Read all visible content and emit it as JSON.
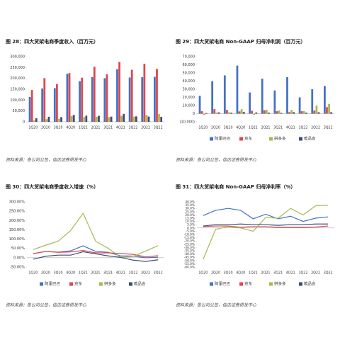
{
  "chart_data": [
    {
      "type": "bar",
      "title": "图 28：四大货架电商季度收入（百万元）",
      "categories": [
        "1Q20",
        "2Q20",
        "3Q20",
        "4Q20",
        "1Q21",
        "2Q21",
        "3Q21",
        "4Q21",
        "1Q22",
        "2Q22",
        "3Q22"
      ],
      "series": [
        {
          "color": "#4472c4",
          "values": [
            114314,
            153751,
            155059,
            221084,
            187395,
            205740,
            200690,
            242580,
            204052,
            205555,
            207176
          ]
        },
        {
          "color": "#e0474c",
          "values": [
            146205,
            201054,
            174176,
            224329,
            203198,
            253798,
            218704,
            275912,
            239666,
            267602,
            243535
          ]
        },
        {
          "color": "#a9b84f",
          "values": [
            6541,
            12193,
            14210,
            26548,
            22167,
            23044,
            21506,
            27231,
            23794,
            31440,
            35504
          ]
        },
        {
          "color": "#3f4a7d",
          "values": [
            16900,
            23300,
            21800,
            31700,
            28400,
            28000,
            24000,
            36600,
            25000,
            24200,
            23000
          ]
        }
      ],
      "ylim": [
        0,
        300000
      ],
      "yticks": [
        0,
        {
          "value": 50000,
          "label": "50,000"
        },
        {
          "value": 100000,
          "label": "100,000"
        },
        {
          "value": 150000,
          "label": "150,000"
        },
        {
          "value": 200000,
          "label": "200,000"
        },
        {
          "value": 250000,
          "label": "250,000"
        },
        {
          "value": 300000,
          "label": "300,000"
        }
      ],
      "source": "资料来源：各公司公告，信达证券研发中心"
    },
    {
      "type": "bar",
      "title": "图 29：四大货架电商 Non-GAAP 归母净利润（百万元）",
      "categories": [
        "1Q20",
        "2Q20",
        "3Q20",
        "4Q20",
        "1Q21",
        "2Q21",
        "3Q21",
        "4Q21",
        "1Q22",
        "2Q22",
        "3Q22"
      ],
      "series": [
        {
          "name": "阿里巴巴",
          "color": "#4472c4",
          "values": [
            22000,
            40000,
            47000,
            59000,
            26000,
            43000,
            28500,
            44800,
            20000,
            30000,
            34000
          ]
        },
        {
          "name": "京东",
          "color": "#e0474c",
          "values": [
            3000,
            5500,
            4600,
            2800,
            3600,
            4200,
            3000,
            1900,
            3000,
            3900,
            8000
          ]
        },
        {
          "name": "拼多多",
          "color": "#a9b84f",
          "values": [
            -1700,
            1400,
            1700,
            5500,
            -1400,
            4700,
            4000,
            4600,
            3100,
            10000,
            12000
          ]
        },
        {
          "name": "唯品会",
          "color": "#3f4a7d",
          "values": [
            800,
            1600,
            1200,
            2000,
            1500,
            1300,
            1000,
            1800,
            1300,
            1700,
            1800
          ]
        }
      ],
      "ylim": [
        -10000,
        70000
      ],
      "yticks": [
        {
          "value": -10000,
          "label": "(10,000)"
        },
        0,
        {
          "value": 10000,
          "label": "10,000"
        },
        {
          "value": 20000,
          "label": "20,000"
        },
        {
          "value": 30000,
          "label": "30,000"
        },
        {
          "value": 40000,
          "label": "40,000"
        },
        {
          "value": 50000,
          "label": "50,000"
        },
        {
          "value": 60000,
          "label": "60,000"
        },
        {
          "value": 70000,
          "label": "70,000"
        }
      ],
      "source": "资料来源：各公司公告，信达证券研发中心"
    },
    {
      "type": "line",
      "title": "图 30：四大货架电商季度收入增速（%）",
      "categories": [
        "1Q20",
        "2Q20",
        "3Q20",
        "4Q20",
        "1Q21",
        "2Q21",
        "3Q21",
        "4Q21",
        "1Q22",
        "2Q22",
        "3Q22"
      ],
      "series": [
        {
          "name": "阿里巴巴",
          "color": "#4472c4",
          "values": [
            22,
            34,
            30,
            37,
            64,
            34,
            29,
            10,
            9,
            0,
            3
          ]
        },
        {
          "name": "京东",
          "color": "#e0474c",
          "values": [
            21,
            34,
            29,
            31,
            39,
            26,
            26,
            23,
            18,
            5,
            11
          ]
        },
        {
          "name": "拼多多",
          "color": "#a9b84f",
          "values": [
            44,
            67,
            89,
            146,
            239,
            89,
            51,
            3,
            7,
            36,
            65
          ]
        },
        {
          "name": "唯品会",
          "color": "#3f4a7d",
          "values": [
            -8,
            8,
            14,
            14,
            32,
            21,
            10,
            2,
            -13,
            -20,
            -11
          ]
        }
      ],
      "ylim": [
        -50,
        300
      ],
      "yticks": [
        {
          "value": -50,
          "label": "-50.00%"
        },
        {
          "value": 0,
          "label": "0.00%"
        },
        {
          "value": 50,
          "label": "50.00%"
        },
        {
          "value": 100,
          "label": "100.00%"
        },
        {
          "value": 150,
          "label": "150.00%"
        },
        {
          "value": 200,
          "label": "200.00%"
        },
        {
          "value": 250,
          "label": "250.00%"
        },
        {
          "value": 300,
          "label": "300.00%"
        }
      ],
      "source": "资料来源：各公司公告，信达证券研发中心"
    },
    {
      "type": "line",
      "title": "图 31：四大货架电商 Non-GAAP 归母净利率（%）",
      "categories": [
        "1Q20",
        "2Q20",
        "3Q20",
        "4Q20",
        "1Q21",
        "2Q21",
        "3Q21",
        "4Q21",
        "1Q22",
        "2Q22",
        "3Q22"
      ],
      "series": [
        {
          "name": "阿里巴巴",
          "color": "#4472c4",
          "values": [
            19,
            27,
            30,
            27,
            14,
            21,
            14,
            18,
            10,
            15,
            17
          ]
        },
        {
          "name": "京东",
          "color": "#e0474c",
          "values": [
            2,
            3,
            3,
            1,
            2,
            2,
            1,
            1,
            1,
            1.4,
            3
          ]
        },
        {
          "name": "拼多多",
          "color": "#a9b84f",
          "values": [
            -48,
            -2,
            2,
            0,
            -5,
            16,
            15,
            30,
            20,
            34,
            35
          ]
        },
        {
          "name": "唯品会",
          "color": "#3f4a7d",
          "values": [
            3,
            5,
            5,
            6,
            5,
            5,
            4,
            5,
            5,
            6,
            6
          ]
        }
      ],
      "ylim": [
        -60,
        40
      ],
      "yticks": [
        {
          "value": -60,
          "label": "-60.0%"
        },
        {
          "value": -55,
          "label": "-55.0%"
        },
        {
          "value": -50,
          "label": "-50.0%"
        },
        {
          "value": -45,
          "label": "-45.0%"
        },
        {
          "value": -40,
          "label": "-40.0%"
        },
        {
          "value": -35,
          "label": "-35.0%"
        },
        {
          "value": -30,
          "label": "-30.0%"
        },
        {
          "value": -25,
          "label": "-25.0%"
        },
        {
          "value": -20,
          "label": "-20.0%"
        },
        {
          "value": -15,
          "label": "-15.0%"
        },
        {
          "value": -10,
          "label": "-10.0%"
        },
        {
          "value": -5,
          "label": "-5.0%"
        },
        {
          "value": 0,
          "label": "0.0%"
        },
        {
          "value": 5,
          "label": "5.0%"
        },
        {
          "value": 10,
          "label": "10.0%"
        },
        {
          "value": 15,
          "label": "15.0%"
        },
        {
          "value": 20,
          "label": "20.0%"
        },
        {
          "value": 25,
          "label": "25.0%"
        },
        {
          "value": 30,
          "label": "30.0%"
        },
        {
          "value": 35,
          "label": "35.0%"
        },
        {
          "value": 40,
          "label": "40.0%"
        }
      ],
      "source": "资料来源：各公司公告，信达证券研发中心"
    }
  ]
}
